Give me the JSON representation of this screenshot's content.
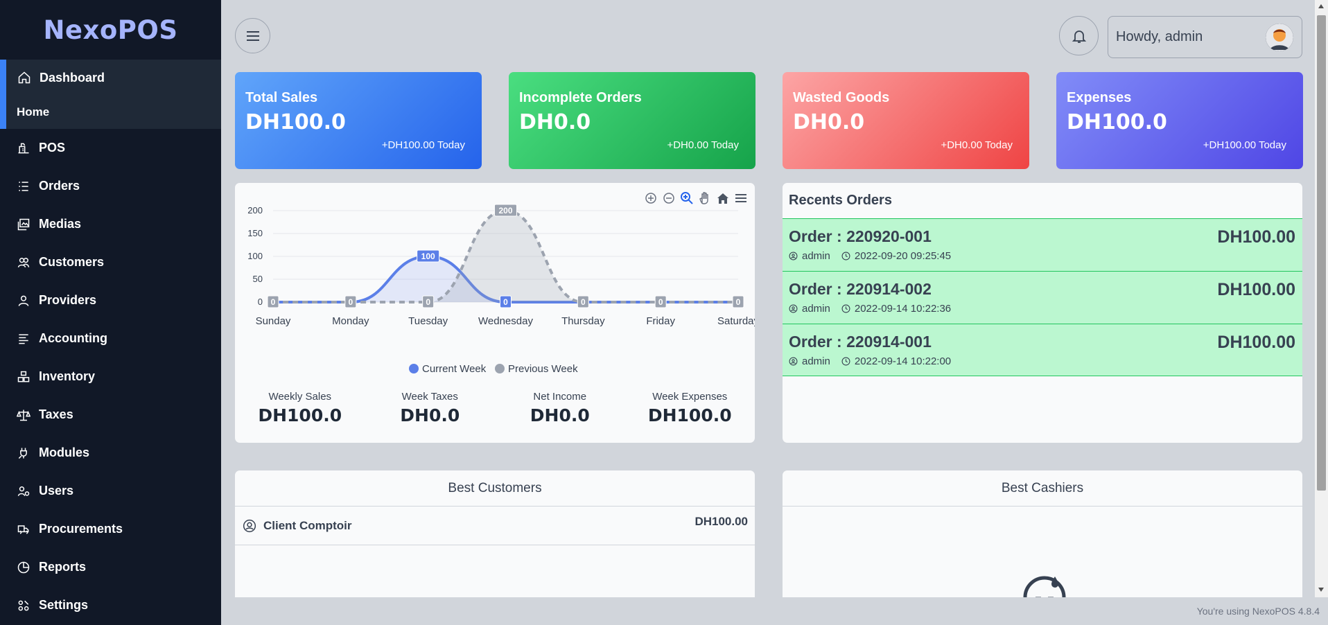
{
  "app": {
    "logo": "NexoPOS",
    "footer": "You're using NexoPOS 4.8.4"
  },
  "sidebar": {
    "dashboard": {
      "label": "Dashboard",
      "sub": "Home"
    },
    "items": [
      {
        "label": "POS",
        "icon": "pos-icon"
      },
      {
        "label": "Orders",
        "icon": "list-icon"
      },
      {
        "label": "Medias",
        "icon": "image-icon"
      },
      {
        "label": "Customers",
        "icon": "users-icon"
      },
      {
        "label": "Providers",
        "icon": "user-icon"
      },
      {
        "label": "Accounting",
        "icon": "ledger-icon"
      },
      {
        "label": "Inventory",
        "icon": "boxes-icon"
      },
      {
        "label": "Taxes",
        "icon": "scale-icon"
      },
      {
        "label": "Modules",
        "icon": "plug-icon"
      },
      {
        "label": "Users",
        "icon": "users-cog-icon"
      },
      {
        "label": "Procurements",
        "icon": "truck-icon"
      },
      {
        "label": "Reports",
        "icon": "pie-chart-icon"
      },
      {
        "label": "Settings",
        "icon": "settings-icon"
      }
    ]
  },
  "header": {
    "greeting": "Howdy, admin"
  },
  "cards": [
    {
      "title": "Total Sales",
      "value": "DH100.0",
      "delta": "+DH100.00 Today",
      "color1": "#60a5fa",
      "color2": "#2563eb"
    },
    {
      "title": "Incomplete Orders",
      "value": "DH0.0",
      "delta": "+DH0.00 Today",
      "color1": "#4ade80",
      "color2": "#16a34a"
    },
    {
      "title": "Wasted Goods",
      "value": "DH0.0",
      "delta": "+DH0.00 Today",
      "color1": "#fca5a5",
      "color2": "#ef4444"
    },
    {
      "title": "Expenses",
      "value": "DH100.0",
      "delta": "+DH100.00 Today",
      "color1": "#818cf8",
      "color2": "#4f46e5"
    }
  ],
  "chart_data": {
    "type": "area",
    "categories": [
      "Sunday",
      "Monday",
      "Tuesday",
      "Wednesday",
      "Thursday",
      "Friday",
      "Saturday"
    ],
    "series": [
      {
        "name": "Current Week",
        "values": [
          0,
          0,
          100,
          0,
          0,
          0,
          0
        ],
        "color": "#5b7fe8"
      },
      {
        "name": "Previous Week",
        "values": [
          0,
          0,
          0,
          200,
          0,
          0,
          0
        ],
        "color": "#9ca3af"
      }
    ],
    "yticks": [
      0,
      50,
      100,
      150,
      200
    ],
    "ylim": [
      0,
      200
    ],
    "legend": "bottom"
  },
  "weekly": [
    {
      "label": "Weekly Sales",
      "value": "DH100.0"
    },
    {
      "label": "Week Taxes",
      "value": "DH0.0"
    },
    {
      "label": "Net Income",
      "value": "DH0.0"
    },
    {
      "label": "Week Expenses",
      "value": "DH100.0"
    }
  ],
  "recent": {
    "title": "Recents Orders",
    "orders": [
      {
        "code": "Order : 220920-001",
        "amount": "DH100.00",
        "user": "admin",
        "date": "2022-09-20 09:25:45"
      },
      {
        "code": "Order : 220914-002",
        "amount": "DH100.00",
        "user": "admin",
        "date": "2022-09-14 10:22:36"
      },
      {
        "code": "Order : 220914-001",
        "amount": "DH100.00",
        "user": "admin",
        "date": "2022-09-14 10:22:00"
      }
    ]
  },
  "best_customers": {
    "title": "Best Customers",
    "rows": [
      {
        "name": "Client Comptoir",
        "amount": "DH100.00"
      }
    ]
  },
  "best_cashiers": {
    "title": "Best Cashiers"
  }
}
